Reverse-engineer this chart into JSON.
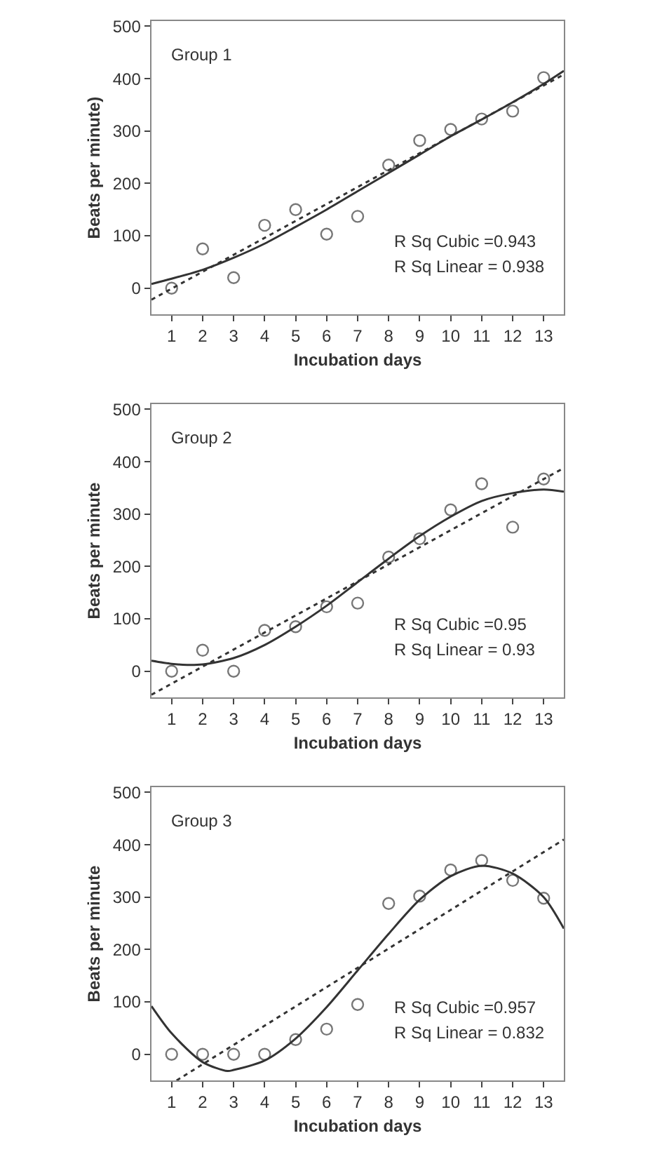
{
  "chart_data": [
    {
      "type": "scatter",
      "xlabel": "Incubation days",
      "ylabel": "Beats per minute)",
      "annotations": [
        "Group 1",
        "R Sq Cubic =0.943",
        "R Sq Linear = 0.938"
      ],
      "x": [
        1,
        2,
        3,
        4,
        5,
        6,
        7,
        8,
        9,
        10,
        11,
        12,
        13
      ],
      "xlim": [
        0.35,
        13.65
      ],
      "xticks": [
        1,
        2,
        3,
        4,
        5,
        6,
        7,
        8,
        9,
        10,
        11,
        12,
        13
      ],
      "ylim": [
        -50,
        510
      ],
      "yticks": [
        0,
        100,
        200,
        300,
        400,
        500
      ],
      "grid": false,
      "series": [
        {
          "color": "#777777",
          "marker": "circle",
          "values": [
            0,
            75,
            20,
            120,
            150,
            103,
            137,
            235,
            282,
            303,
            323,
            338,
            402
          ]
        },
        {
          "type": "line",
          "color": "#333333",
          "line_style": "solid",
          "marker": "none",
          "x": [
            0.35,
            1,
            2,
            3,
            4,
            5,
            6,
            7,
            8,
            9,
            10,
            11,
            12,
            13,
            13.65
          ],
          "values": [
            8,
            18,
            35,
            58,
            85,
            117,
            150,
            185,
            220,
            255,
            290,
            322,
            355,
            390,
            415
          ]
        },
        {
          "type": "line",
          "color": "#333333",
          "line_style": "dotted",
          "marker": "none",
          "x": [
            0.35,
            13.65
          ],
          "values": [
            -22,
            408
          ]
        }
      ]
    },
    {
      "type": "scatter",
      "xlabel": "Incubation days",
      "ylabel": "Beats per minute",
      "annotations": [
        "Group 2",
        "R Sq Cubic =0.95",
        "R Sq Linear = 0.93"
      ],
      "x": [
        1,
        2,
        3,
        4,
        5,
        6,
        7,
        8,
        9,
        10,
        11,
        12,
        13
      ],
      "xlim": [
        0.35,
        13.65
      ],
      "xticks": [
        1,
        2,
        3,
        4,
        5,
        6,
        7,
        8,
        9,
        10,
        11,
        12,
        13
      ],
      "ylim": [
        -50,
        510
      ],
      "yticks": [
        0,
        100,
        200,
        300,
        400,
        500
      ],
      "grid": false,
      "series": [
        {
          "color": "#777777",
          "marker": "circle",
          "values": [
            0,
            40,
            0,
            78,
            85,
            123,
            130,
            218,
            253,
            308,
            358,
            275,
            367
          ]
        },
        {
          "type": "line",
          "color": "#333333",
          "line_style": "solid",
          "marker": "none",
          "x": [
            0.35,
            1,
            1.5,
            2,
            3,
            4,
            5,
            6,
            7,
            8,
            9,
            10,
            11,
            12,
            13,
            13.65
          ],
          "values": [
            20,
            14,
            12,
            13,
            25,
            50,
            85,
            125,
            170,
            215,
            258,
            295,
            325,
            340,
            347,
            343
          ]
        },
        {
          "type": "line",
          "color": "#333333",
          "line_style": "dotted",
          "marker": "none",
          "x": [
            0.35,
            13.65
          ],
          "values": [
            -45,
            388
          ]
        }
      ]
    },
    {
      "type": "scatter",
      "xlabel": "Incubation days",
      "ylabel": "Beats per minute",
      "annotations": [
        "Group 3",
        "R Sq Cubic =0.957",
        "R Sq Linear = 0.832"
      ],
      "x": [
        1,
        2,
        3,
        4,
        5,
        6,
        7,
        8,
        9,
        10,
        11,
        12,
        13
      ],
      "xlim": [
        0.35,
        13.65
      ],
      "xticks": [
        1,
        2,
        3,
        4,
        5,
        6,
        7,
        8,
        9,
        10,
        11,
        12,
        13
      ],
      "ylim": [
        -50,
        510
      ],
      "yticks": [
        0,
        100,
        200,
        300,
        400,
        500
      ],
      "grid": false,
      "series": [
        {
          "color": "#777777",
          "marker": "circle",
          "values": [
            0,
            0,
            0,
            0,
            28,
            48,
            95,
            288,
            302,
            352,
            370,
            332,
            298
          ]
        },
        {
          "type": "line",
          "color": "#333333",
          "line_style": "solid",
          "marker": "none",
          "x": [
            0.35,
            1,
            2,
            2.8,
            3,
            4,
            5,
            6,
            7,
            8,
            9,
            10,
            11,
            12,
            13,
            13.65
          ],
          "values": [
            92,
            40,
            -15,
            -32,
            -30,
            -12,
            30,
            90,
            160,
            230,
            295,
            340,
            360,
            345,
            300,
            240
          ]
        },
        {
          "type": "line",
          "color": "#333333",
          "line_style": "dotted",
          "marker": "none",
          "x": [
            1.16,
            13.65
          ],
          "values": [
            -50,
            410
          ]
        }
      ]
    }
  ]
}
